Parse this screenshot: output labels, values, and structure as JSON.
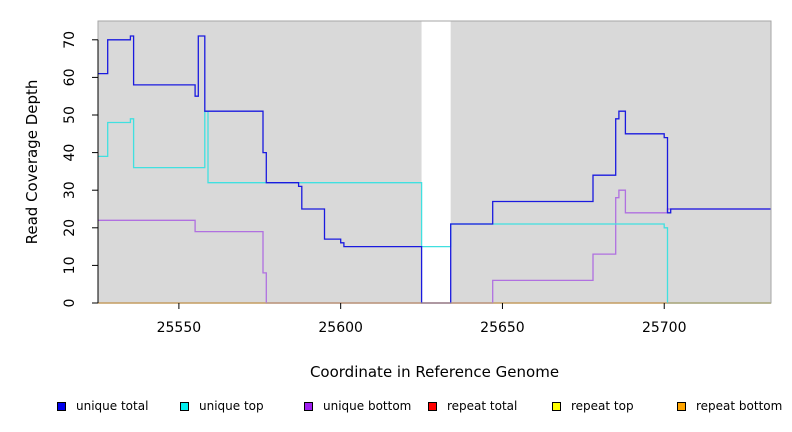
{
  "chart_data": {
    "type": "line",
    "xlabel": "Coordinate in Reference Genome",
    "ylabel": "Read Coverage Depth",
    "xlim": [
      25525,
      25733
    ],
    "ylim": [
      0,
      75
    ],
    "xticks": [
      25550,
      25600,
      25650,
      25700
    ],
    "yticks": [
      0,
      10,
      20,
      30,
      40,
      50,
      60,
      70
    ],
    "background_color": "#d9d9d9",
    "gap_region": [
      25625,
      25634
    ],
    "legend_position": "bottom",
    "series": [
      {
        "name": "unique total",
        "color": "#0000ee",
        "line_color": "#1a1adf",
        "x": [
          25525,
          25528,
          25535,
          25536,
          25555,
          25556,
          25558,
          25559,
          25576,
          25577,
          25587,
          25588,
          25595,
          25600,
          25601,
          25625,
          25634,
          25647,
          25678,
          25685,
          25686,
          25688,
          25700,
          25701,
          25702,
          25733
        ],
        "y": [
          61,
          70,
          71,
          58,
          55,
          71,
          51,
          51,
          40,
          32,
          31,
          25,
          17,
          16,
          15,
          0,
          21,
          27,
          34,
          49,
          51,
          45,
          44,
          24,
          25,
          25
        ]
      },
      {
        "name": "unique top",
        "color": "#00eeee",
        "line_color": "#40e0e0",
        "x": [
          25525,
          25528,
          25535,
          25536,
          25558,
          25559,
          25576,
          25577,
          25625,
          25634,
          25700,
          25701,
          25733
        ],
        "y": [
          39,
          48,
          49,
          36,
          51,
          32,
          32,
          32,
          15,
          21,
          20,
          0,
          0
        ]
      },
      {
        "name": "unique bottom",
        "color": "#a020f0",
        "line_color": "#b070e0",
        "x": [
          25525,
          25555,
          25576,
          25577,
          25647,
          25678,
          25685,
          25686,
          25688,
          25701,
          25733
        ],
        "y": [
          22,
          19,
          8,
          0,
          6,
          13,
          28,
          30,
          24,
          25,
          25
        ]
      },
      {
        "name": "repeat total",
        "color": "#ff0000",
        "line_color": "#ff0000",
        "x": [
          25525,
          25733
        ],
        "y": [
          0,
          0
        ]
      },
      {
        "name": "repeat top",
        "color": "#ffff00",
        "line_color": "#ffff00",
        "x": [
          25525,
          25733
        ],
        "y": [
          0,
          0
        ]
      },
      {
        "name": "repeat bottom",
        "color": "#ffa500",
        "line_color": "#ffa500",
        "x": [
          25525,
          25733
        ],
        "y": [
          0,
          0
        ]
      }
    ]
  }
}
